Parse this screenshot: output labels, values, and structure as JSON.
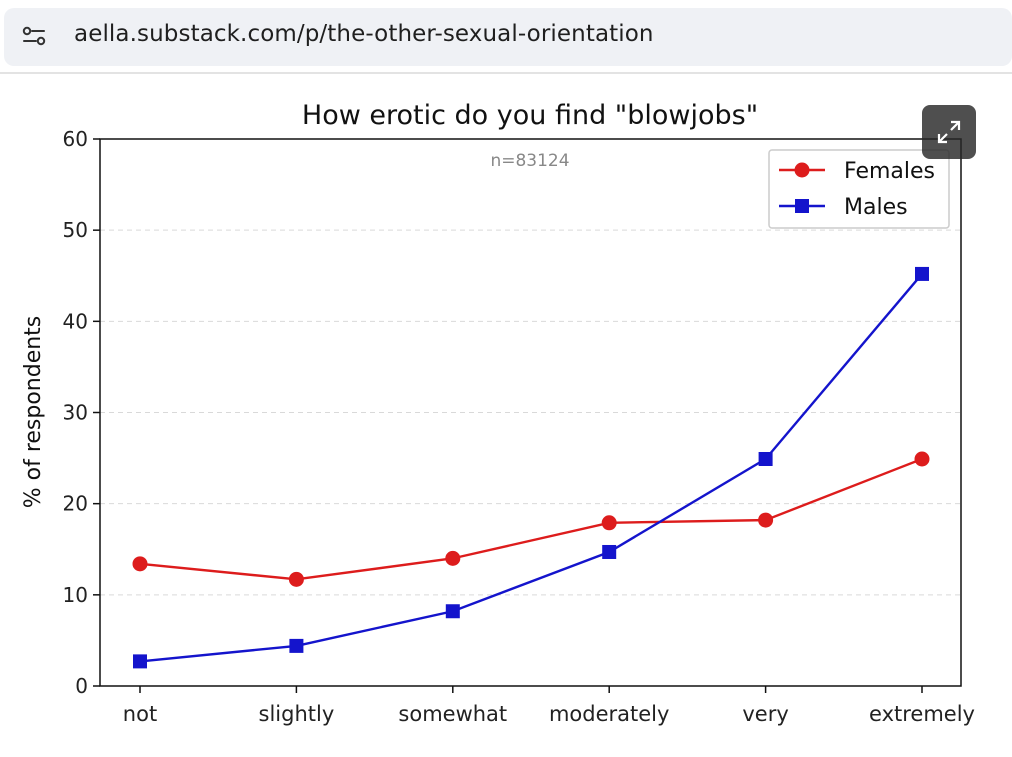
{
  "browser": {
    "url": "aella.substack.com/p/the-other-sexual-orientation",
    "site_icon": "tune-icon"
  },
  "expand_button": {
    "icon": "expand-icon"
  },
  "chart_data": {
    "type": "line",
    "title": "How erotic do you find \"blowjobs\"",
    "subtitle": "n=83124",
    "xlabel": "",
    "ylabel": "% of respondents",
    "categories": [
      "not",
      "slightly",
      "somewhat",
      "moderately",
      "very",
      "extremely"
    ],
    "ylim": [
      0,
      60
    ],
    "yticks": [
      0,
      10,
      20,
      30,
      40,
      50,
      60
    ],
    "grid": "horizontal-dashed",
    "legend": "top-right",
    "series": [
      {
        "name": "Females",
        "color": "#dd1c1c",
        "marker": "circle",
        "values": [
          13.4,
          11.7,
          14.0,
          17.9,
          18.2,
          24.9
        ]
      },
      {
        "name": "Males",
        "color": "#1414cc",
        "marker": "square",
        "values": [
          2.7,
          4.4,
          8.2,
          14.7,
          24.9,
          45.2
        ]
      }
    ]
  }
}
